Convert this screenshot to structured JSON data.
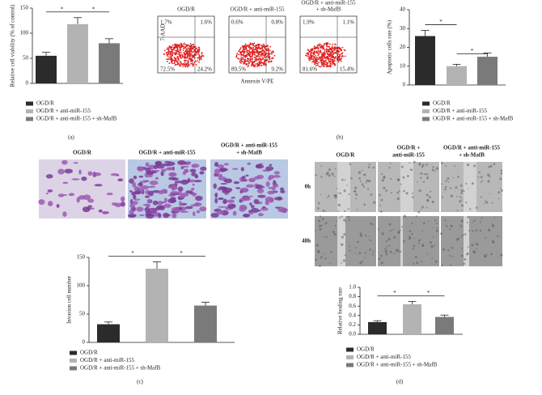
{
  "chart_data": [
    {
      "type": "bar",
      "ylabel": "Relative cell viability (% of control)",
      "ylim": [
        0,
        150
      ],
      "yticks": [
        0,
        50,
        100,
        150
      ],
      "annotations": [
        "*",
        "*"
      ],
      "series": [
        {
          "name": "OGD/R",
          "color": "#2b2b2b",
          "values": [
            55
          ],
          "errors": [
            7
          ]
        },
        {
          "name": "OGD/R + anti-miR-155",
          "color": "#b3b3b3",
          "values": [
            118
          ],
          "errors": [
            13
          ]
        },
        {
          "name": "OGD/R + anti-miR-155 + sh-MafB",
          "color": "#7a7a7a",
          "values": [
            80
          ],
          "errors": [
            9
          ]
        }
      ]
    },
    {
      "type": "bar",
      "ylabel": "Apoptotic cells rate (%)",
      "ylim": [
        0,
        40
      ],
      "yticks": [
        0,
        10,
        20,
        30,
        40
      ],
      "annotations": [
        "*",
        "*"
      ],
      "series": [
        {
          "name": "OGD/R",
          "color": "#2b2b2b",
          "values": [
            26
          ],
          "errors": [
            3
          ]
        },
        {
          "name": "OGD/R + anti-miR-155",
          "color": "#b3b3b3",
          "values": [
            10
          ],
          "errors": [
            1
          ]
        },
        {
          "name": "OGD/R + anti-miR-155 + sh-MafB",
          "color": "#7a7a7a",
          "values": [
            15
          ],
          "errors": [
            2
          ]
        }
      ]
    },
    {
      "type": "bar",
      "ylabel": "Invasion cell number",
      "ylim": [
        0,
        150
      ],
      "yticks": [
        0,
        50,
        100,
        150
      ],
      "annotations": [
        "*",
        "*"
      ],
      "series": [
        {
          "name": "OGD/R",
          "color": "#2b2b2b",
          "values": [
            32
          ],
          "errors": [
            4
          ]
        },
        {
          "name": "OGD/R + anti-miR-155",
          "color": "#b3b3b3",
          "values": [
            130
          ],
          "errors": [
            12
          ]
        },
        {
          "name": "OGD/R + anti-miR-155 + sh-MafB",
          "color": "#7a7a7a",
          "values": [
            65
          ],
          "errors": [
            6
          ]
        }
      ]
    },
    {
      "type": "bar",
      "ylabel": "Relative healing rate",
      "ylim": [
        0,
        1.0
      ],
      "yticks": [
        {
          "value": 0,
          "label": "0.0"
        },
        0.2,
        0.4,
        0.6,
        0.8,
        {
          "value": 1.0,
          "label": "1.0"
        }
      ],
      "annotations": [
        "*",
        "*"
      ],
      "series": [
        {
          "name": "OGD/R",
          "color": "#2b2b2b",
          "values": [
            0.26
          ],
          "errors": [
            0.03
          ]
        },
        {
          "name": "OGD/R + anti-miR-155",
          "color": "#b3b3b3",
          "values": [
            0.64
          ],
          "errors": [
            0.06
          ]
        },
        {
          "name": "OGD/R + anti-miR-155 + sh-MafB",
          "color": "#7a7a7a",
          "values": [
            0.37
          ],
          "errors": [
            0.04
          ]
        }
      ]
    }
  ],
  "panel_labels": [
    "(a)",
    "(b)",
    "(c)",
    "(d)"
  ],
  "flow": {
    "y_label": "7-AAD",
    "x_label": "Annexin V/PE",
    "titles": [
      [
        "OGD/R"
      ],
      [
        "OGD/R + anti-miR-155"
      ],
      [
        "OGD/R + anti-miR-155",
        "+ sh-MafB"
      ]
    ],
    "quadrants": [
      [
        "1.7%",
        "1.6%",
        "72.5%",
        "24.2%"
      ],
      [
        "0.6%",
        "0.8%",
        "89.5%",
        "9.2%"
      ],
      [
        "1.9%",
        "1.1%",
        "81.6%",
        "15.4%"
      ]
    ]
  },
  "invasion_images": {
    "titles": [
      [
        "OGD/R"
      ],
      [
        "OGD/R + anti-miR-155"
      ],
      [
        "OGD/R + anti-miR-155",
        "+ sh-MafB"
      ]
    ]
  },
  "wound_images": {
    "titles": [
      [
        "OGD/R"
      ],
      [
        "OGD/R +",
        "anti-miR-155"
      ],
      [
        "OGD/R + anti-miR-155",
        "+ sh-MafB"
      ]
    ],
    "rows": [
      "0h",
      "48h"
    ]
  }
}
